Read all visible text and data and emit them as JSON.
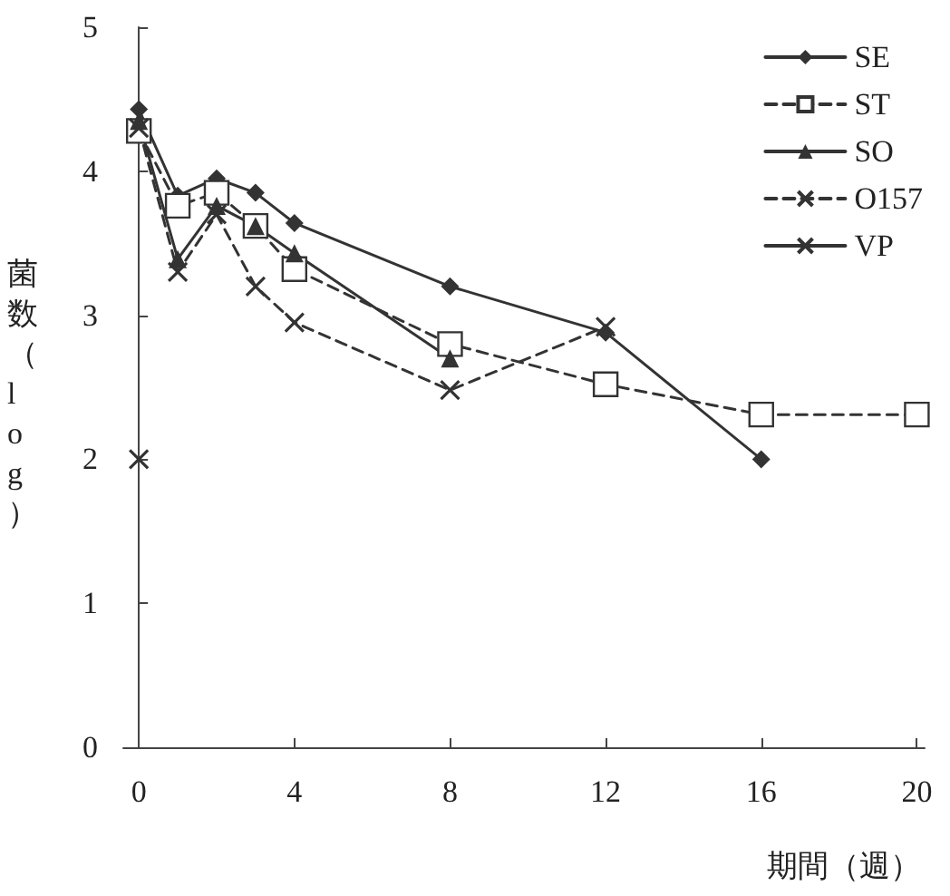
{
  "chart_data": {
    "type": "line",
    "xlabel": "期間（週）",
    "ylabel": "菌数（log）",
    "xlim": [
      -0.4,
      20.2
    ],
    "xticks": [
      0,
      4,
      8,
      12,
      16,
      20
    ],
    "ylim": [
      0,
      5
    ],
    "yticks": [
      0,
      1,
      2,
      3,
      4,
      5
    ],
    "grid": false,
    "legend": "top right",
    "series": [
      {
        "name": "SE",
        "color": "#333333",
        "marker": "diamond",
        "line_style": "solid",
        "x": [
          0,
          1,
          2,
          3,
          4,
          8,
          12,
          16
        ],
        "values": [
          4.43,
          3.83,
          3.95,
          3.85,
          3.64,
          3.2,
          2.88,
          2.0
        ]
      },
      {
        "name": "ST",
        "color": "#333333",
        "marker": "square",
        "line_style": "dashed",
        "x": [
          0,
          1,
          2,
          3,
          4,
          8,
          12,
          16,
          20
        ],
        "values": [
          4.28,
          3.76,
          3.85,
          3.62,
          3.32,
          2.8,
          2.52,
          2.31,
          2.31
        ]
      },
      {
        "name": "SO",
        "color": "#333333",
        "marker": "triangle",
        "line_style": "solid",
        "x": [
          0,
          1,
          2,
          3,
          4,
          8
        ],
        "values": [
          4.35,
          3.39,
          3.76,
          3.62,
          3.43,
          2.7
        ]
      },
      {
        "name": "O157",
        "color": "#333333",
        "marker": "cross",
        "line_style": "dashed",
        "x": [
          0,
          1,
          2,
          3,
          4,
          8,
          12
        ],
        "values": [
          4.3,
          3.3,
          3.7,
          3.2,
          2.95,
          2.48,
          2.92
        ]
      },
      {
        "name": "VP",
        "color": "#333333",
        "marker": "cross",
        "line_style": "solid",
        "x": [
          0
        ],
        "values": [
          2.0
        ]
      }
    ]
  }
}
